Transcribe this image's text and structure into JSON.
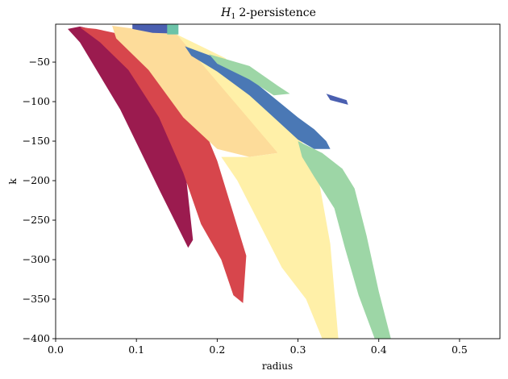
{
  "chart_data": {
    "type": "area",
    "title_math": "H",
    "title_sub": "1",
    "title_rest": "2-persistence",
    "xlabel": "radius",
    "ylabel": "k",
    "xlim": [
      0.0,
      0.55
    ],
    "ylim": [
      -400,
      -2
    ],
    "xticks": [
      0.0,
      0.1,
      0.2,
      0.3,
      0.4,
      0.5
    ],
    "xtick_labels": [
      "0.0",
      "0.1",
      "0.2",
      "0.3",
      "0.4",
      "0.5"
    ],
    "yticks": [
      -50,
      -100,
      -150,
      -200,
      -250,
      -300,
      -350,
      -400
    ],
    "ytick_labels": [
      "−50",
      "−100",
      "−150",
      "−200",
      "−250",
      "−300",
      "−350",
      "−400"
    ],
    "grid": false,
    "regions": [
      {
        "color": "#9b1b4f",
        "points": [
          [
            0.03,
            -5
          ],
          [
            0.075,
            -15
          ],
          [
            0.125,
            -80
          ],
          [
            0.155,
            -135
          ],
          [
            0.17,
            -275
          ],
          [
            0.164,
            -285
          ],
          [
            0.13,
            -215
          ],
          [
            0.08,
            -110
          ],
          [
            0.03,
            -25
          ],
          [
            0.015,
            -8
          ]
        ]
      },
      {
        "color": "#d7464c",
        "points": [
          [
            0.05,
            -8
          ],
          [
            0.105,
            -20
          ],
          [
            0.17,
            -100
          ],
          [
            0.2,
            -175
          ],
          [
            0.218,
            -235
          ],
          [
            0.236,
            -295
          ],
          [
            0.232,
            -355
          ],
          [
            0.22,
            -345
          ],
          [
            0.205,
            -300
          ],
          [
            0.18,
            -255
          ],
          [
            0.158,
            -190
          ],
          [
            0.128,
            -120
          ],
          [
            0.09,
            -60
          ],
          [
            0.055,
            -25
          ],
          [
            0.03,
            -6
          ]
        ]
      },
      {
        "color": "#fddc9a",
        "points": [
          [
            0.07,
            -4
          ],
          [
            0.15,
            -15
          ],
          [
            0.2,
            -45
          ],
          [
            0.23,
            -80
          ],
          [
            0.26,
            -130
          ],
          [
            0.275,
            -165
          ],
          [
            0.24,
            -170
          ],
          [
            0.2,
            -160
          ],
          [
            0.158,
            -120
          ],
          [
            0.115,
            -60
          ],
          [
            0.075,
            -20
          ]
        ]
      },
      {
        "color": "#fff0a8",
        "points": [
          [
            0.15,
            -15
          ],
          [
            0.21,
            -45
          ],
          [
            0.255,
            -90
          ],
          [
            0.3,
            -140
          ],
          [
            0.325,
            -195
          ],
          [
            0.34,
            -280
          ],
          [
            0.35,
            -400
          ],
          [
            0.33,
            -400
          ],
          [
            0.31,
            -350
          ],
          [
            0.28,
            -310
          ],
          [
            0.25,
            -250
          ],
          [
            0.225,
            -200
          ],
          [
            0.205,
            -170
          ],
          [
            0.24,
            -170
          ],
          [
            0.275,
            -165
          ]
        ]
      },
      {
        "color": "#9dd6a6",
        "points": [
          [
            0.3,
            -150
          ],
          [
            0.33,
            -165
          ],
          [
            0.355,
            -185
          ],
          [
            0.37,
            -210
          ],
          [
            0.385,
            -270
          ],
          [
            0.4,
            -340
          ],
          [
            0.415,
            -400
          ],
          [
            0.395,
            -400
          ],
          [
            0.375,
            -345
          ],
          [
            0.358,
            -285
          ],
          [
            0.345,
            -235
          ],
          [
            0.32,
            -195
          ],
          [
            0.305,
            -170
          ]
        ]
      },
      {
        "color": "#4a78b5",
        "points": [
          [
            0.16,
            -30
          ],
          [
            0.2,
            -45
          ],
          [
            0.24,
            -70
          ],
          [
            0.27,
            -95
          ],
          [
            0.3,
            -120
          ],
          [
            0.32,
            -135
          ],
          [
            0.335,
            -150
          ],
          [
            0.34,
            -160
          ],
          [
            0.32,
            -160
          ],
          [
            0.3,
            -148
          ],
          [
            0.27,
            -120
          ],
          [
            0.24,
            -92
          ],
          [
            0.2,
            -62
          ],
          [
            0.168,
            -42
          ]
        ]
      },
      {
        "color": "#4a5fb0",
        "points": [
          [
            0.095,
            -2
          ],
          [
            0.15,
            -2
          ],
          [
            0.15,
            -14
          ],
          [
            0.12,
            -13
          ],
          [
            0.095,
            -8
          ]
        ]
      },
      {
        "color": "#6cc3a8",
        "points": [
          [
            0.138,
            -2
          ],
          [
            0.152,
            -2
          ],
          [
            0.152,
            -15
          ],
          [
            0.138,
            -15
          ]
        ]
      },
      {
        "color": "#9dd6a6",
        "points": [
          [
            0.19,
            -40
          ],
          [
            0.24,
            -55
          ],
          [
            0.275,
            -80
          ],
          [
            0.29,
            -90
          ],
          [
            0.27,
            -92
          ],
          [
            0.24,
            -72
          ],
          [
            0.2,
            -52
          ]
        ]
      },
      {
        "color": "#4a5fb0",
        "points": [
          [
            0.335,
            -90
          ],
          [
            0.36,
            -98
          ],
          [
            0.362,
            -104
          ],
          [
            0.34,
            -98
          ]
        ]
      }
    ]
  }
}
